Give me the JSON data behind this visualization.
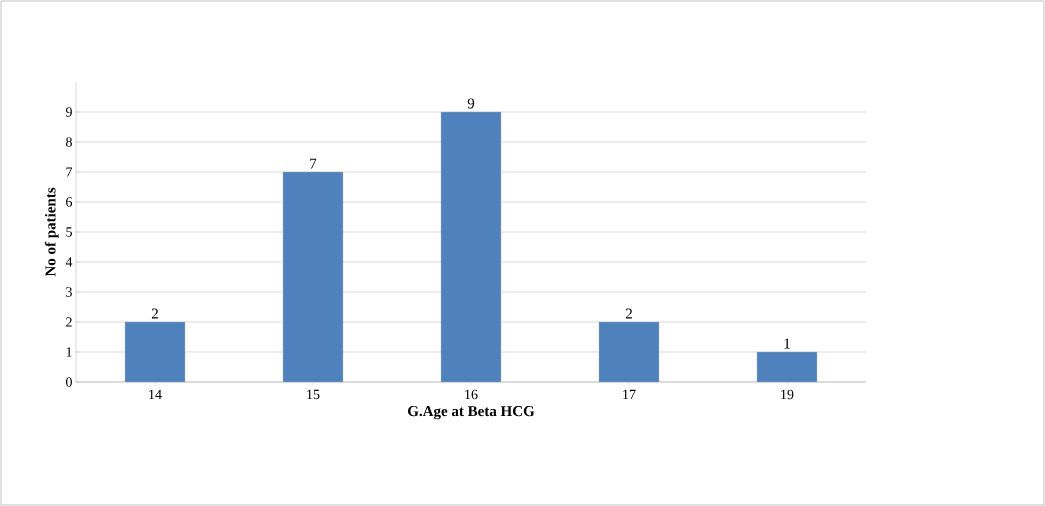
{
  "chart_data": {
    "type": "bar",
    "xlabel": "G.Age at Beta HCG",
    "ylabel": "No of patients",
    "categories": [
      "14",
      "15",
      "16",
      "17",
      "19"
    ],
    "values": [
      2,
      7,
      9,
      2,
      1
    ],
    "color": "#4f81bd",
    "ylim": [
      0,
      10
    ],
    "yticks": [
      0,
      1,
      2,
      3,
      4,
      5,
      6,
      7,
      8,
      9
    ],
    "grid": "y",
    "data_labels": true
  }
}
